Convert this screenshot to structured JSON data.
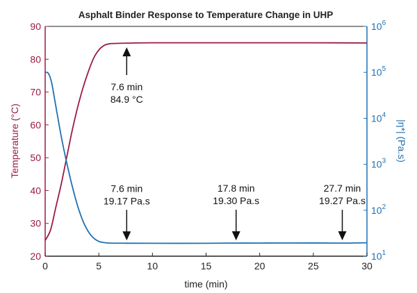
{
  "chart_data": {
    "type": "line",
    "title": "Asphalt Binder Response to Temperature Change in UHP",
    "xlabel": "time (min)",
    "ylabel_left": "Temperature (°C)",
    "ylabel_right": "|η*| (Pa.s)",
    "xlim": [
      0,
      30
    ],
    "ylim_left": [
      20,
      90
    ],
    "ylim_right_log10": [
      1,
      6
    ],
    "x_ticks": [
      "0",
      "5",
      "10",
      "15",
      "20",
      "25",
      "30"
    ],
    "y_left_ticks": [
      "20",
      "30",
      "40",
      "50",
      "60",
      "70",
      "80",
      "90"
    ],
    "y_right_ticks": [
      {
        "base": "10",
        "exp": "1"
      },
      {
        "base": "10",
        "exp": "2"
      },
      {
        "base": "10",
        "exp": "3"
      },
      {
        "base": "10",
        "exp": "4"
      },
      {
        "base": "10",
        "exp": "5"
      },
      {
        "base": "10",
        "exp": "6"
      }
    ],
    "grid": false,
    "colors": {
      "temperature": "#9b1a3f",
      "viscosity": "#1f6fb2"
    },
    "series": [
      {
        "axis": "left",
        "x": [
          0,
          0.5,
          1,
          1.5,
          2,
          2.5,
          3,
          3.5,
          4,
          4.5,
          5,
          5.5,
          6,
          6.5,
          7,
          7.6,
          10,
          15,
          20,
          25,
          30
        ],
        "values": [
          24.8,
          28,
          35,
          42,
          50,
          58,
          65,
          71,
          76,
          80.2,
          82.8,
          84.2,
          84.7,
          84.8,
          84.85,
          84.9,
          85.0,
          85.0,
          85.0,
          85.0,
          84.95
        ]
      },
      {
        "axis": "right",
        "x": [
          0,
          0.3,
          0.6,
          1,
          1.5,
          2,
          2.5,
          3,
          3.5,
          4,
          4.5,
          5,
          5.5,
          6,
          7,
          7.6,
          10,
          15,
          17.8,
          20,
          25,
          27.7,
          30
        ],
        "values": [
          100000,
          95000,
          60000,
          18000,
          4000,
          1100,
          350,
          130,
          60,
          35,
          25,
          21,
          19.8,
          19.3,
          19.2,
          19.17,
          19.1,
          19.1,
          19.3,
          19.3,
          19.4,
          19.27,
          19.6
        ]
      }
    ],
    "annotations": [
      {
        "x": 7.6,
        "y": 84.9,
        "axis": "left",
        "direction": "up",
        "lines": [
          "7.6 min",
          "84.9 °C"
        ]
      },
      {
        "x": 7.6,
        "y": 19.17,
        "axis": "right",
        "direction": "down",
        "lines": [
          "7.6 min",
          "19.17 Pa.s"
        ]
      },
      {
        "x": 17.8,
        "y": 19.3,
        "axis": "right",
        "direction": "down",
        "lines": [
          "17.8 min",
          "19.30 Pa.s"
        ]
      },
      {
        "x": 27.7,
        "y": 19.27,
        "axis": "right",
        "direction": "down",
        "lines": [
          "27.7 min",
          "19.27 Pa.s"
        ]
      }
    ]
  }
}
